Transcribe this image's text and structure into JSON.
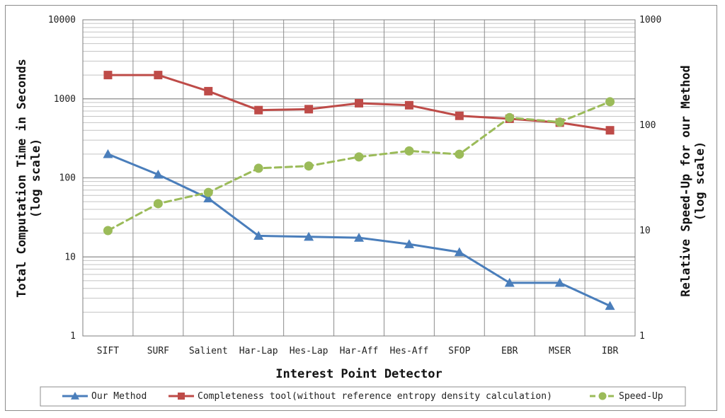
{
  "chart_data": {
    "type": "line",
    "xlabel": "Interest Point Detector",
    "ylabel_left": [
      "Total Computation Time in Seconds",
      "(log scale)"
    ],
    "ylabel_right": [
      "Relative Speed-Up for our Method",
      "(log scale)"
    ],
    "categories": [
      "SIFT",
      "SURF",
      "Salient",
      "Har-Lap",
      "Hes-Lap",
      "Har-Aff",
      "Hes-Aff",
      "SFOP",
      "EBR",
      "MSER",
      "IBR"
    ],
    "left_axis": {
      "scale": "log",
      "range": [
        1,
        10000
      ],
      "ticks": [
        "1",
        "10",
        "100",
        "1000",
        "10000"
      ]
    },
    "right_axis": {
      "scale": "log",
      "range": [
        1,
        1000
      ],
      "ticks": [
        "1",
        "10",
        "100",
        "1000"
      ]
    },
    "grid": true,
    "legend_position": "bottom",
    "series": [
      {
        "name": "Our Method",
        "axis": "left",
        "color": "#4a7ebb",
        "marker": "triangle",
        "dash": "solid",
        "values": [
          200,
          110,
          55,
          18.5,
          18,
          17.5,
          14.5,
          11.5,
          4.7,
          4.7,
          2.4
        ]
      },
      {
        "name": "Completeness tool(without reference entropy density calculation)",
        "axis": "left",
        "color": "#be4b48",
        "marker": "square",
        "dash": "solid",
        "values": [
          2000,
          2000,
          1250,
          720,
          740,
          880,
          830,
          610,
          560,
          500,
          400
        ]
      },
      {
        "name": "Speed-Up",
        "axis": "right",
        "color": "#9bbb59",
        "marker": "circle",
        "dash": "dashed",
        "values": [
          10,
          18,
          23,
          39,
          41,
          50,
          57,
          53,
          118,
          107,
          167
        ]
      }
    ]
  }
}
